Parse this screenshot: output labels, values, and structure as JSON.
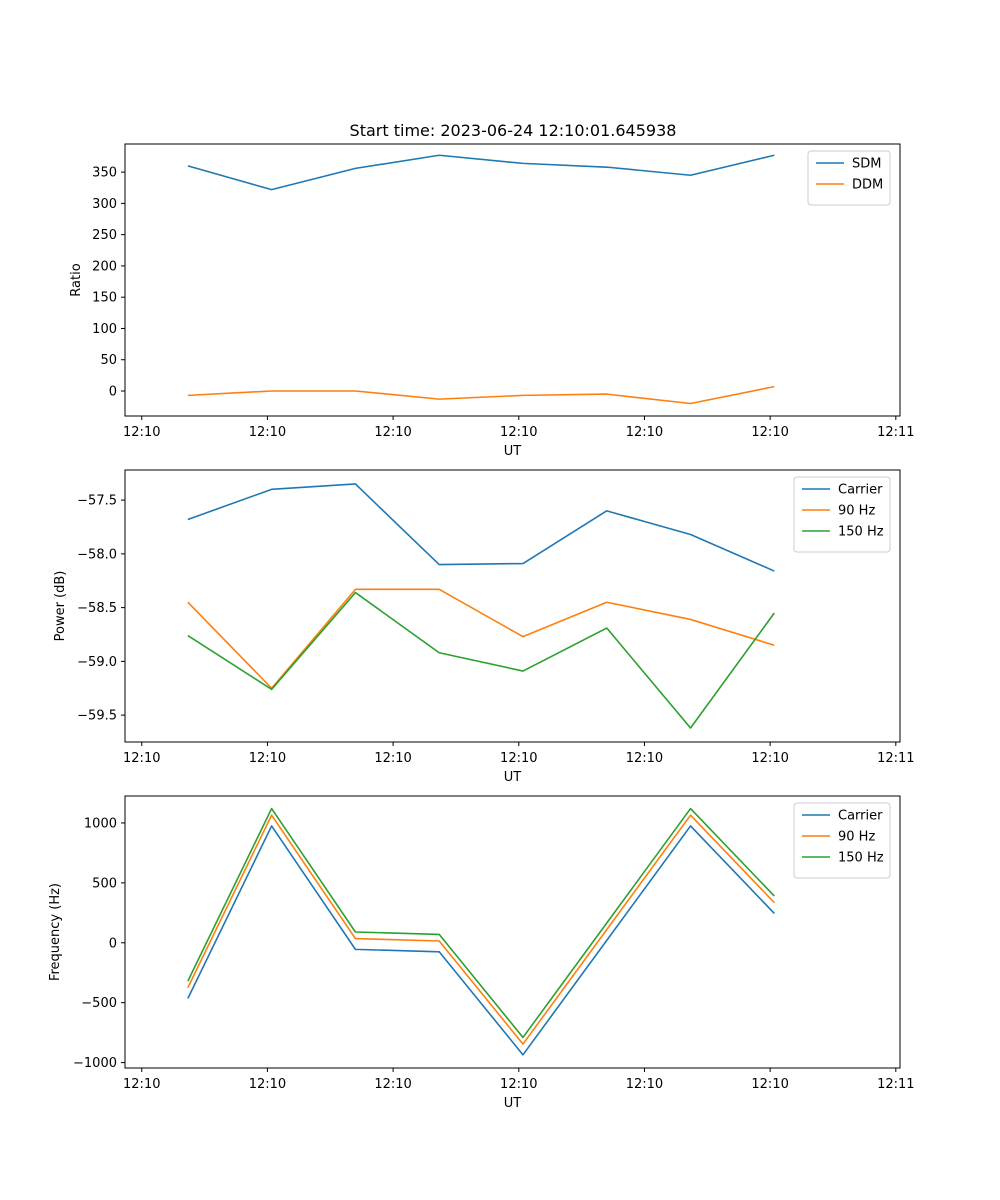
{
  "figure": {
    "title": "Start time: 2023-06-24 12:10:01.645938"
  },
  "chart_data": [
    {
      "type": "line",
      "xlabel": "UT",
      "ylabel": "Ratio",
      "xlim": [
        0,
        9.25
      ],
      "ylim": [
        -40,
        395
      ],
      "x": [
        0.75,
        1.75,
        2.75,
        3.75,
        4.75,
        5.75,
        6.75,
        7.75
      ],
      "xticks": [
        {
          "value": 0.2,
          "label": "12:10"
        },
        {
          "value": 1.7,
          "label": "12:10"
        },
        {
          "value": 3.2,
          "label": "12:10"
        },
        {
          "value": 4.7,
          "label": "12:10"
        },
        {
          "value": 6.2,
          "label": "12:10"
        },
        {
          "value": 7.7,
          "label": "12:10"
        },
        {
          "value": 9.2,
          "label": "12:11"
        }
      ],
      "yticks": [
        {
          "value": 350,
          "label": "350"
        },
        {
          "value": 300,
          "label": "300"
        },
        {
          "value": 250,
          "label": "250"
        },
        {
          "value": 200,
          "label": "200"
        },
        {
          "value": 150,
          "label": "150"
        },
        {
          "value": 100,
          "label": "100"
        },
        {
          "value": 50,
          "label": "50"
        },
        {
          "value": 0,
          "label": "0"
        }
      ],
      "legend_position": "top-right",
      "series": [
        {
          "name": "SDM",
          "color": "#1f77b4",
          "values": [
            360,
            322,
            356,
            377,
            364,
            358,
            345,
            377
          ]
        },
        {
          "name": "DDM",
          "color": "#ff7f0e",
          "values": [
            -7,
            0,
            0,
            -13,
            -7,
            -5,
            -20,
            7
          ]
        }
      ]
    },
    {
      "type": "line",
      "xlabel": "UT",
      "ylabel": "Power (dB)",
      "xlim": [
        0,
        9.25
      ],
      "ylim": [
        -59.75,
        -57.22
      ],
      "x": [
        0.75,
        1.75,
        2.75,
        3.75,
        4.75,
        5.75,
        6.75,
        7.75
      ],
      "xticks": [
        {
          "value": 0.2,
          "label": "12:10"
        },
        {
          "value": 1.7,
          "label": "12:10"
        },
        {
          "value": 3.2,
          "label": "12:10"
        },
        {
          "value": 4.7,
          "label": "12:10"
        },
        {
          "value": 6.2,
          "label": "12:10"
        },
        {
          "value": 7.7,
          "label": "12:10"
        },
        {
          "value": 9.2,
          "label": "12:11"
        }
      ],
      "yticks": [
        {
          "value": -57.5,
          "label": "−57.5"
        },
        {
          "value": -58.0,
          "label": "−58.0"
        },
        {
          "value": -58.5,
          "label": "−58.5"
        },
        {
          "value": -59.0,
          "label": "−59.0"
        },
        {
          "value": -59.5,
          "label": "−59.5"
        }
      ],
      "legend_position": "top-right",
      "series": [
        {
          "name": "Carrier",
          "color": "#1f77b4",
          "values": [
            -57.68,
            -57.4,
            -57.35,
            -58.1,
            -58.09,
            -57.6,
            -57.82,
            -58.16
          ]
        },
        {
          "name": "90 Hz",
          "color": "#ff7f0e",
          "values": [
            -58.45,
            -59.25,
            -58.33,
            -58.33,
            -58.77,
            -58.45,
            -58.61,
            -58.85
          ]
        },
        {
          "name": "150 Hz",
          "color": "#2ca02c",
          "values": [
            -58.76,
            -59.26,
            -58.36,
            -58.92,
            -59.09,
            -58.69,
            -59.62,
            -58.55
          ]
        }
      ]
    },
    {
      "type": "line",
      "xlabel": "UT",
      "ylabel": "Frequency (Hz)",
      "xlim": [
        0,
        9.25
      ],
      "ylim": [
        -1045,
        1225
      ],
      "x": [
        0.75,
        1.75,
        2.75,
        3.75,
        4.75,
        5.75,
        6.75,
        7.75
      ],
      "xticks": [
        {
          "value": 0.2,
          "label": "12:10"
        },
        {
          "value": 1.7,
          "label": "12:10"
        },
        {
          "value": 3.2,
          "label": "12:10"
        },
        {
          "value": 4.7,
          "label": "12:10"
        },
        {
          "value": 6.2,
          "label": "12:10"
        },
        {
          "value": 7.7,
          "label": "12:10"
        },
        {
          "value": 9.2,
          "label": "12:11"
        }
      ],
      "yticks": [
        {
          "value": 1000,
          "label": "1000"
        },
        {
          "value": 500,
          "label": "500"
        },
        {
          "value": 0,
          "label": "0"
        },
        {
          "value": -500,
          "label": "−500"
        },
        {
          "value": -1000,
          "label": "−1000"
        }
      ],
      "legend_position": "top-right",
      "series": [
        {
          "name": "Carrier",
          "color": "#1f77b4",
          "values": [
            -465,
            975,
            -55,
            -75,
            -935,
            20,
            975,
            245
          ]
        },
        {
          "name": "90 Hz",
          "color": "#ff7f0e",
          "values": [
            -375,
            1065,
            35,
            15,
            -845,
            110,
            1065,
            335
          ]
        },
        {
          "name": "150 Hz",
          "color": "#2ca02c",
          "values": [
            -320,
            1120,
            90,
            70,
            -790,
            165,
            1120,
            390
          ]
        }
      ]
    }
  ]
}
